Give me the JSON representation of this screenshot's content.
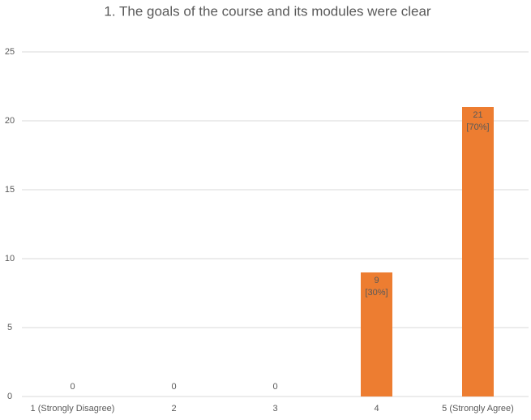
{
  "chart_data": {
    "type": "bar",
    "title": "1. The goals of the course and its modules were clear",
    "categories": [
      "1 (Strongly Disagree)",
      "2",
      "3",
      "4",
      "5 (Strongly Agree)"
    ],
    "values": [
      0,
      0,
      0,
      9,
      21
    ],
    "value_labels": [
      "0",
      "0",
      "0",
      "9\n[30%]",
      "21\n[70%]"
    ],
    "color": "#ed7d31",
    "ylim": [
      0,
      25
    ],
    "yticks": [
      0,
      5,
      10,
      15,
      20,
      25
    ],
    "grid": true
  }
}
